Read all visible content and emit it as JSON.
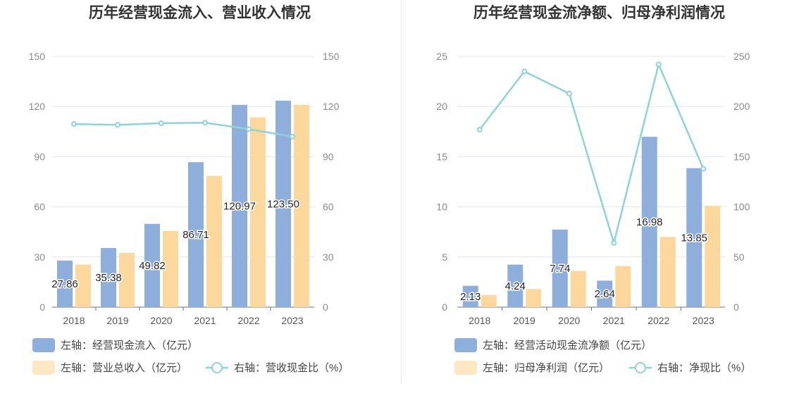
{
  "chart_data": [
    {
      "type": "bar",
      "title": "历年经营现金流入、营业收入情况",
      "categories": [
        "2018",
        "2019",
        "2020",
        "2021",
        "2022",
        "2023"
      ],
      "ylim_left": [
        0,
        150
      ],
      "ylim_right": [
        0,
        150
      ],
      "yticks_left": [
        0,
        30,
        60,
        90,
        120,
        150
      ],
      "yticks_right": [
        0,
        30,
        60,
        90,
        120,
        150
      ],
      "grid": true,
      "legend_position": "bottom-left",
      "series": [
        {
          "name": "左轴：经营现金流入（亿元）",
          "type": "bar",
          "axis": "left",
          "color": "#8eaedb",
          "values": [
            27.86,
            35.38,
            49.82,
            86.71,
            120.97,
            123.5
          ],
          "labels": [
            "27.86",
            "35.38",
            "49.82",
            "86.71",
            "120.97",
            "123.50"
          ]
        },
        {
          "name": "左轴：营业总收入（亿元）",
          "type": "bar",
          "axis": "left",
          "color": "#fdd89c",
          "values": [
            25.5,
            32.5,
            45.5,
            78.5,
            113.5,
            121.0
          ]
        },
        {
          "name": "右轴：营收现金比（%）",
          "type": "line",
          "axis": "right",
          "color": "#8dd3da",
          "values": [
            109.5,
            109,
            110,
            110.3,
            106.5,
            102
          ]
        }
      ]
    },
    {
      "type": "bar",
      "title": "历年经营现金流净额、归母净利润情况",
      "categories": [
        "2018",
        "2019",
        "2020",
        "2021",
        "2022",
        "2023"
      ],
      "ylim_left": [
        0,
        25
      ],
      "ylim_right": [
        0,
        250
      ],
      "yticks_left": [
        0,
        5,
        10,
        15,
        20,
        25
      ],
      "yticks_right": [
        0,
        50,
        100,
        150,
        200,
        250
      ],
      "grid": true,
      "legend_position": "bottom-left",
      "series": [
        {
          "name": "左轴：经营活动现金流净额（亿元）",
          "type": "bar",
          "axis": "left",
          "color": "#8eaedb",
          "values": [
            2.13,
            4.24,
            7.74,
            2.64,
            16.98,
            13.85
          ],
          "labels": [
            "2.13",
            "4.24",
            "7.74",
            "2.64",
            "16.98",
            "13.85"
          ]
        },
        {
          "name": "左轴：归母净利润（亿元）",
          "type": "bar",
          "axis": "left",
          "color": "#fdd89c",
          "values": [
            1.2,
            1.8,
            3.6,
            4.1,
            7.0,
            10.1
          ]
        },
        {
          "name": "右轴：净现比（%）",
          "type": "line",
          "axis": "right",
          "color": "#8dd3da",
          "values": [
            177,
            235,
            213,
            64,
            242,
            138
          ]
        }
      ]
    }
  ]
}
